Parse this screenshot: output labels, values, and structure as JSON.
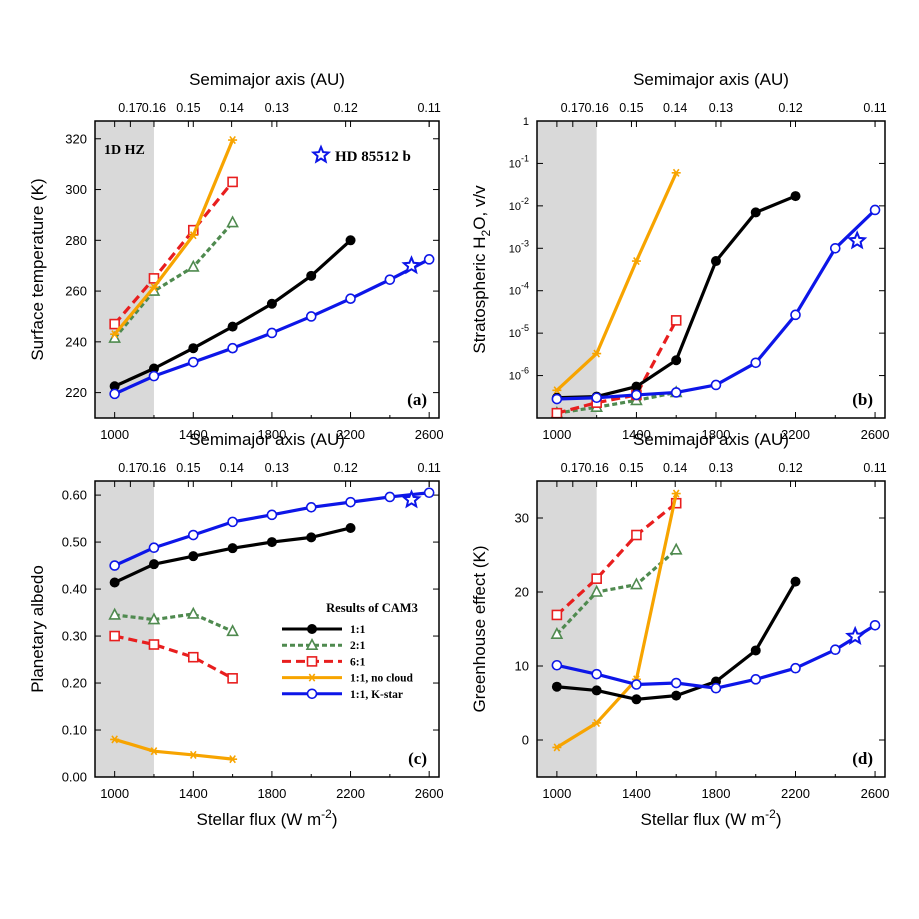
{
  "colors": {
    "black": "#000000",
    "green": "#4f8a4f",
    "red": "#e81e1e",
    "orange": "#f7a400",
    "blue": "#0d16e8",
    "hz_shade": "#d9d9d9"
  },
  "figure": {
    "x_label": "Stellar flux (W m",
    "x_label_sup": "-2",
    "x_label_close": ")",
    "top_axis_title": "Semimajor axis (AU)"
  },
  "legend": {
    "title": "Results of CAM3",
    "entries": [
      {
        "label": "1:1",
        "series": "s11"
      },
      {
        "label": "2:1",
        "series": "s21"
      },
      {
        "label": "6:1",
        "series": "s61"
      },
      {
        "label": "1:1, no cloud",
        "series": "nocloud"
      },
      {
        "label": "1:1, K-star",
        "series": "kstar"
      }
    ]
  },
  "chart_data": [
    {
      "id": "a",
      "panel_label": "(a)",
      "type": "line",
      "y_scale": "linear",
      "ylabel": "Surface temperature (K)",
      "xlabel": "Stellar flux (W m-2)",
      "xlim": [
        900,
        2650
      ],
      "ylim": [
        210,
        327
      ],
      "x_ticks": [
        1000,
        1400,
        1800,
        2200,
        2600
      ],
      "y_ticks": [
        220,
        240,
        260,
        280,
        300,
        320
      ],
      "top_ticks": [
        {
          "label": "0.17",
          "x": 1080
        },
        {
          "label": "0.16",
          "x": 1200
        },
        {
          "label": "0.15",
          "x": 1375
        },
        {
          "label": "0.14",
          "x": 1595
        },
        {
          "label": "0.13",
          "x": 1825
        },
        {
          "label": "0.12",
          "x": 2175
        },
        {
          "label": "0.11",
          "x": 2600
        }
      ],
      "hz_label": "1D HZ",
      "hz_range": [
        900,
        1200
      ],
      "annotation": "HD 85512 b",
      "star": {
        "x": 2510,
        "y": 270
      },
      "series": [
        {
          "key": "s11",
          "name": "1:1",
          "x": [
            1000,
            1200,
            1400,
            1600,
            1800,
            2000,
            2200
          ],
          "y": [
            222.5,
            229.5,
            237.5,
            246,
            255,
            266,
            280
          ]
        },
        {
          "key": "s21",
          "name": "2:1",
          "x": [
            1000,
            1200,
            1400,
            1600
          ],
          "y": [
            241.5,
            260,
            269.5,
            287
          ]
        },
        {
          "key": "s61",
          "name": "6:1",
          "x": [
            1000,
            1200,
            1400,
            1600
          ],
          "y": [
            247,
            265,
            284,
            303
          ]
        },
        {
          "key": "nocloud",
          "name": "1:1, no cloud",
          "x": [
            1000,
            1200,
            1400,
            1600
          ],
          "y": [
            243,
            261.5,
            282,
            319.5
          ]
        },
        {
          "key": "kstar",
          "name": "1:1, K-star",
          "x": [
            1000,
            1200,
            1400,
            1600,
            1800,
            2000,
            2200,
            2400,
            2600
          ],
          "y": [
            219.5,
            226.5,
            232,
            237.5,
            243.5,
            250,
            257,
            264.5,
            272.5
          ]
        }
      ]
    },
    {
      "id": "b",
      "panel_label": "(b)",
      "type": "line",
      "y_scale": "log",
      "ylabel": "Stratospheric H",
      "ylabel_sub": "2",
      "ylabel_rest": "O, v/v",
      "xlabel": "Stellar flux (W m-2)",
      "xlim": [
        900,
        2650
      ],
      "ylim": [
        1e-07,
        1
      ],
      "x_ticks": [
        1000,
        1400,
        1800,
        2200,
        2600
      ],
      "y_ticks": [
        {
          "value": 1e-06,
          "label": "10",
          "exp": "-6"
        },
        {
          "value": 1e-05,
          "label": "10",
          "exp": "-5"
        },
        {
          "value": 0.0001,
          "label": "10",
          "exp": "-4"
        },
        {
          "value": 0.001,
          "label": "10",
          "exp": "-3"
        },
        {
          "value": 0.01,
          "label": "10",
          "exp": "-2"
        },
        {
          "value": 0.1,
          "label": "10",
          "exp": "-1"
        },
        {
          "value": 1,
          "label": "1",
          "exp": ""
        }
      ],
      "top_ticks": [
        {
          "label": "0.17",
          "x": 1080
        },
        {
          "label": "0.16",
          "x": 1200
        },
        {
          "label": "0.15",
          "x": 1375
        },
        {
          "label": "0.14",
          "x": 1595
        },
        {
          "label": "0.13",
          "x": 1825
        },
        {
          "label": "0.12",
          "x": 2175
        },
        {
          "label": "0.11",
          "x": 2600
        }
      ],
      "hz_range": [
        900,
        1200
      ],
      "star": {
        "x": 2510,
        "y": 0.0015
      },
      "series": [
        {
          "key": "s11",
          "name": "1:1",
          "x": [
            1000,
            1200,
            1400,
            1600,
            1800,
            2000,
            2200
          ],
          "y": [
            3e-07,
            3.2e-07,
            5.5e-07,
            2.3e-06,
            0.0005,
            0.007,
            0.017
          ]
        },
        {
          "key": "s21",
          "name": "2:1",
          "x": [
            1000,
            1200,
            1400,
            1600
          ],
          "y": [
            1.3e-07,
            1.8e-07,
            2.6e-07,
            4e-07
          ]
        },
        {
          "key": "s61",
          "name": "6:1",
          "x": [
            1000,
            1200,
            1400,
            1600
          ],
          "y": [
            1.3e-07,
            2.3e-07,
            3.5e-07,
            2e-05
          ]
        },
        {
          "key": "nocloud",
          "name": "1:1, no cloud",
          "x": [
            1000,
            1200,
            1400,
            1600
          ],
          "y": [
            4.5e-07,
            3.3e-06,
            0.0005,
            0.06
          ]
        },
        {
          "key": "kstar",
          "name": "1:1, K-star",
          "x": [
            1000,
            1200,
            1400,
            1600,
            1800,
            2000,
            2200,
            2400,
            2600
          ],
          "y": [
            2.8e-07,
            3e-07,
            3.5e-07,
            4e-07,
            6e-07,
            2e-06,
            2.7e-05,
            0.001,
            0.008
          ]
        }
      ]
    },
    {
      "id": "c",
      "panel_label": "(c)",
      "type": "line",
      "y_scale": "linear",
      "ylabel": "Planetary albedo",
      "xlabel": "Stellar flux (W m-2)",
      "xlim": [
        900,
        2650
      ],
      "ylim": [
        0,
        0.63
      ],
      "x_ticks": [
        1000,
        1400,
        1800,
        2200,
        2600
      ],
      "y_ticks": [
        {
          "value": 0,
          "label": "0.00"
        },
        {
          "value": 0.1,
          "label": "0.10"
        },
        {
          "value": 0.2,
          "label": "0.20"
        },
        {
          "value": 0.3,
          "label": "0.30"
        },
        {
          "value": 0.4,
          "label": "0.40"
        },
        {
          "value": 0.5,
          "label": "0.50"
        },
        {
          "value": 0.6,
          "label": "0.60"
        }
      ],
      "top_ticks": [
        {
          "label": "0.17",
          "x": 1080
        },
        {
          "label": "0.16",
          "x": 1200
        },
        {
          "label": "0.15",
          "x": 1375
        },
        {
          "label": "0.14",
          "x": 1595
        },
        {
          "label": "0.13",
          "x": 1825
        },
        {
          "label": "0.12",
          "x": 2175
        },
        {
          "label": "0.11",
          "x": 2600
        }
      ],
      "hz_range": [
        900,
        1200
      ],
      "star": {
        "x": 2510,
        "y": 0.59
      },
      "legend_position": "center-right",
      "series": [
        {
          "key": "s11",
          "name": "1:1",
          "x": [
            1000,
            1200,
            1400,
            1600,
            1800,
            2000,
            2200
          ],
          "y": [
            0.414,
            0.453,
            0.47,
            0.487,
            0.5,
            0.51,
            0.53
          ]
        },
        {
          "key": "s21",
          "name": "2:1",
          "x": [
            1000,
            1200,
            1400,
            1600
          ],
          "y": [
            0.345,
            0.335,
            0.347,
            0.31
          ]
        },
        {
          "key": "s61",
          "name": "6:1",
          "x": [
            1000,
            1200,
            1400,
            1600
          ],
          "y": [
            0.3,
            0.282,
            0.255,
            0.21
          ]
        },
        {
          "key": "nocloud",
          "name": "1:1, no cloud",
          "x": [
            1000,
            1200,
            1400,
            1600
          ],
          "y": [
            0.08,
            0.055,
            0.047,
            0.038
          ]
        },
        {
          "key": "kstar",
          "name": "1:1, K-star",
          "x": [
            1000,
            1200,
            1400,
            1600,
            1800,
            2000,
            2200,
            2400,
            2600
          ],
          "y": [
            0.45,
            0.488,
            0.515,
            0.543,
            0.558,
            0.574,
            0.585,
            0.596,
            0.605
          ]
        }
      ]
    },
    {
      "id": "d",
      "panel_label": "(d)",
      "type": "line",
      "y_scale": "linear",
      "ylabel": "Greenhouse effect (K)",
      "xlabel": "Stellar flux (W m-2)",
      "xlim": [
        900,
        2650
      ],
      "ylim": [
        -5,
        35
      ],
      "x_ticks": [
        1000,
        1400,
        1800,
        2200,
        2600
      ],
      "y_ticks": [
        0,
        10,
        20,
        30
      ],
      "top_ticks": [
        {
          "label": "0.17",
          "x": 1080
        },
        {
          "label": "0.16",
          "x": 1200
        },
        {
          "label": "0.15",
          "x": 1375
        },
        {
          "label": "0.14",
          "x": 1595
        },
        {
          "label": "0.13",
          "x": 1825
        },
        {
          "label": "0.12",
          "x": 2175
        },
        {
          "label": "0.11",
          "x": 2600
        }
      ],
      "hz_range": [
        900,
        1200
      ],
      "star": {
        "x": 2500,
        "y": 14
      },
      "series": [
        {
          "key": "s11",
          "name": "1:1",
          "x": [
            1000,
            1200,
            1400,
            1600,
            1800,
            2000,
            2200
          ],
          "y": [
            7.2,
            6.7,
            5.5,
            6,
            7.9,
            12.1,
            21.4
          ]
        },
        {
          "key": "s21",
          "name": "2:1",
          "x": [
            1000,
            1200,
            1400,
            1600
          ],
          "y": [
            14.3,
            20,
            21,
            25.7
          ]
        },
        {
          "key": "s61",
          "name": "6:1",
          "x": [
            1000,
            1200,
            1400,
            1600
          ],
          "y": [
            16.9,
            21.8,
            27.7,
            32
          ]
        },
        {
          "key": "nocloud",
          "name": "1:1, no cloud",
          "x": [
            1000,
            1200,
            1400,
            1600
          ],
          "y": [
            -1,
            2.3,
            8.2,
            33.3
          ]
        },
        {
          "key": "kstar",
          "name": "1:1, K-star",
          "x": [
            1000,
            1200,
            1400,
            1600,
            1800,
            2000,
            2200,
            2400,
            2600
          ],
          "y": [
            10.1,
            8.9,
            7.5,
            7.7,
            7,
            8.2,
            9.7,
            12.2,
            15.5
          ]
        }
      ]
    }
  ]
}
